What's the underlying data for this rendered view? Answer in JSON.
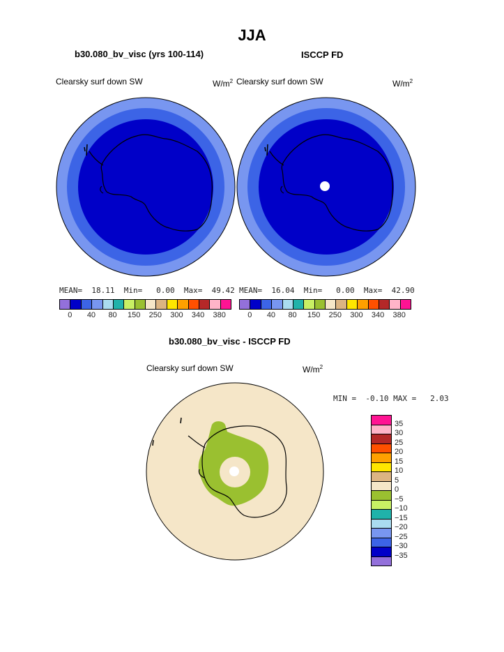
{
  "title": "JJA",
  "panels": [
    {
      "heading": "b30.080_bv_visc (yrs 100-114)",
      "field_label": "Clearsky surf down SW",
      "unit": "W/m",
      "unit_sup": "2",
      "stats": {
        "mean_label": "MEAN=",
        "mean": "18.11",
        "min_label": "Min=",
        "min": "0.00",
        "max_label": "Max=",
        "max": "49.42"
      }
    },
    {
      "heading": "ISCCP FD",
      "field_label": "Clearsky surf down SW",
      "unit": "W/m",
      "unit_sup": "2",
      "stats": {
        "mean_label": "MEAN=",
        "mean": "16.04",
        "min_label": "Min=",
        "min": "0.00",
        "max_label": "Max=",
        "max": "42.90"
      }
    }
  ],
  "abs_colorbar": {
    "colors": [
      "#9370db",
      "#0000c8",
      "#3c64e6",
      "#7896f0",
      "#aadcf0",
      "#20b2aa",
      "#c8f064",
      "#9ac030",
      "#f5e6c8",
      "#dcb482",
      "#ffe600",
      "#ffa000",
      "#ff5000",
      "#b42828",
      "#ffb4c8",
      "#ff1493"
    ],
    "tick_labels": [
      "0",
      "40",
      "80",
      "150",
      "250",
      "300",
      "340",
      "380"
    ]
  },
  "diff": {
    "heading": "b30.080_bv_visc - ISCCP FD",
    "field_label": "Clearsky surf down SW",
    "unit": "W/m",
    "unit_sup": "2",
    "minmax": {
      "min_label": "MIN =",
      "min": "-0.10",
      "max_label": "MAX =",
      "max": "2.03"
    },
    "colors": [
      "#ff1493",
      "#ffb4c8",
      "#b42828",
      "#ff5000",
      "#ffa000",
      "#ffe600",
      "#dcb482",
      "#f5e6c8",
      "#9ac030",
      "#c8f064",
      "#20b2aa",
      "#aadcf0",
      "#7896f0",
      "#3c64e6",
      "#0000c8",
      "#9370db"
    ],
    "tick_labels": [
      "35",
      "30",
      "25",
      "20",
      "15",
      "10",
      "5",
      "0",
      "−5",
      "−10",
      "−15",
      "−20",
      "−25",
      "−30",
      "−35"
    ]
  },
  "map_colors": {
    "outer_ring": "#7896f0",
    "mid_ring": "#3c64e6",
    "inner": "#0000c8",
    "diff_bg": "#f5e6c8",
    "diff_green": "#9ac030",
    "pole_hole": "#ffffff"
  }
}
